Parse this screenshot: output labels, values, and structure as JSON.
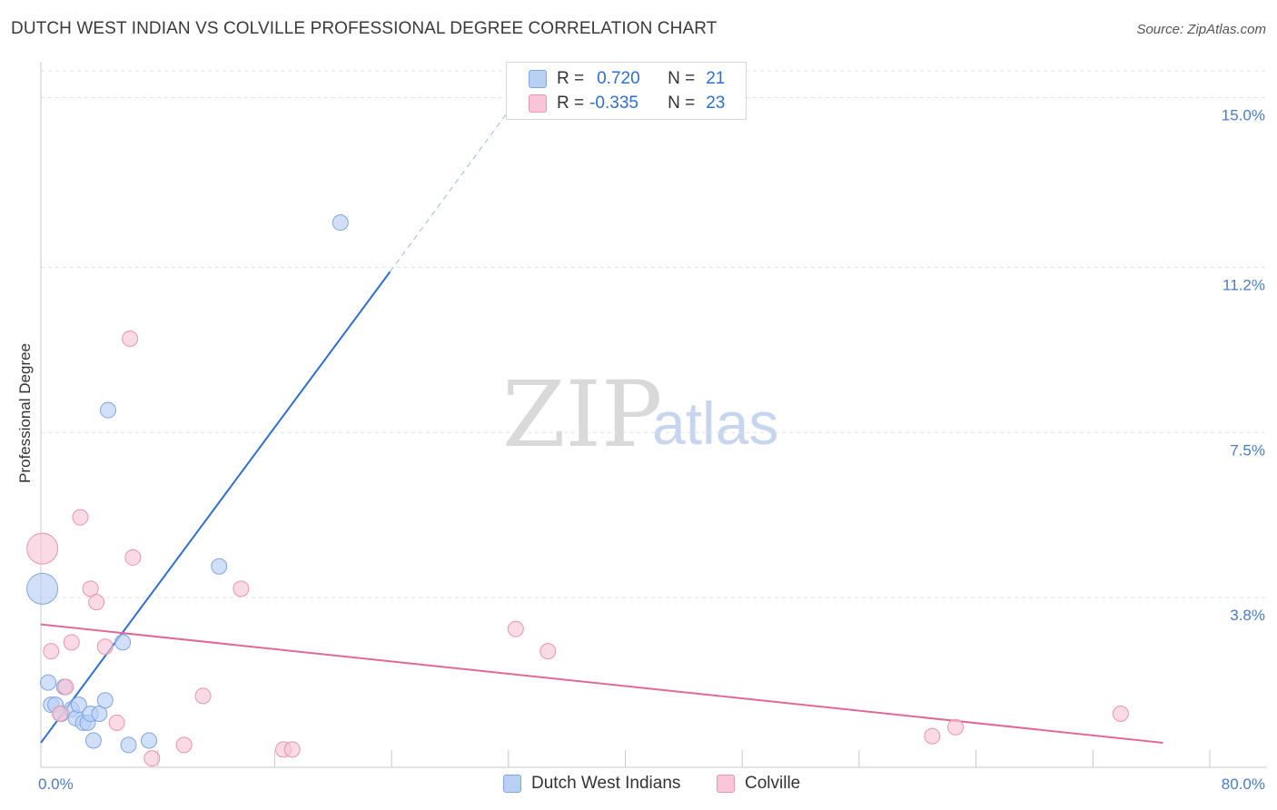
{
  "title": "DUTCH WEST INDIAN VS COLVILLE PROFESSIONAL DEGREE CORRELATION CHART",
  "source": "Source: ZipAtlas.com",
  "watermark": {
    "zip": "ZIP",
    "atlas": "atlas"
  },
  "legend": {
    "rows": [
      {
        "r_label": "R =",
        "r_value": "0.720",
        "n_label": "N =",
        "n_value": "21"
      },
      {
        "r_label": "R =",
        "r_value": "-0.335",
        "n_label": "N =",
        "n_value": "23"
      }
    ]
  },
  "bottom_legend": {
    "series1": "Dutch West Indians",
    "series2": "Colville"
  },
  "colors": {
    "blue_fill": "#b8d0f4",
    "blue_stroke": "#7ea6e0",
    "blue_line": "#2f6fd0",
    "pink_fill": "#f8c6d6",
    "pink_stroke": "#eb95b0",
    "pink_line": "#e06a96",
    "tick": "#4a7cc7"
  },
  "chart_data": {
    "type": "scatter",
    "title": "DUTCH WEST INDIAN VS COLVILLE PROFESSIONAL DEGREE CORRELATION CHART",
    "xlabel": "",
    "ylabel": "Professional Degree",
    "xlim": [
      0,
      80
    ],
    "ylim": [
      0,
      15.6
    ],
    "x_tick_labels": [
      "0.0%",
      "80.0%"
    ],
    "y_ticks": [
      3.8,
      7.5,
      11.2,
      15.0
    ],
    "y_tick_labels": [
      "3.8%",
      "7.5%",
      "11.2%",
      "15.0%"
    ],
    "series": [
      {
        "name": "Dutch West Indians",
        "points": [
          {
            "x": 0.1,
            "y": 4.0,
            "big": true
          },
          {
            "x": 0.5,
            "y": 1.9
          },
          {
            "x": 0.7,
            "y": 1.4
          },
          {
            "x": 1.0,
            "y": 1.4
          },
          {
            "x": 1.4,
            "y": 1.2
          },
          {
            "x": 1.6,
            "y": 1.8
          },
          {
            "x": 2.1,
            "y": 1.3
          },
          {
            "x": 2.4,
            "y": 1.1
          },
          {
            "x": 2.6,
            "y": 1.4
          },
          {
            "x": 2.9,
            "y": 1.0
          },
          {
            "x": 3.2,
            "y": 1.0
          },
          {
            "x": 3.4,
            "y": 1.2
          },
          {
            "x": 3.6,
            "y": 0.6
          },
          {
            "x": 4.0,
            "y": 1.2
          },
          {
            "x": 4.4,
            "y": 1.5
          },
          {
            "x": 4.6,
            "y": 8.0
          },
          {
            "x": 5.6,
            "y": 2.8
          },
          {
            "x": 6.0,
            "y": 0.5
          },
          {
            "x": 7.4,
            "y": 0.6
          },
          {
            "x": 12.2,
            "y": 4.5
          },
          {
            "x": 20.5,
            "y": 12.2
          }
        ],
        "trend": {
          "x0": 0,
          "y0": 0.55,
          "x1": 23.9,
          "y1": 11.1,
          "dash_to_x": 32.0,
          "dash_to_y": 14.7
        }
      },
      {
        "name": "Colville",
        "points": [
          {
            "x": 0.1,
            "y": 4.9,
            "big": true
          },
          {
            "x": 0.7,
            "y": 2.6
          },
          {
            "x": 1.3,
            "y": 1.2
          },
          {
            "x": 1.7,
            "y": 1.8
          },
          {
            "x": 2.1,
            "y": 2.8
          },
          {
            "x": 2.7,
            "y": 5.6
          },
          {
            "x": 3.4,
            "y": 4.0
          },
          {
            "x": 3.8,
            "y": 3.7
          },
          {
            "x": 4.4,
            "y": 2.7
          },
          {
            "x": 5.2,
            "y": 1.0
          },
          {
            "x": 6.1,
            "y": 9.6
          },
          {
            "x": 6.3,
            "y": 4.7
          },
          {
            "x": 7.6,
            "y": 0.2
          },
          {
            "x": 9.8,
            "y": 0.5
          },
          {
            "x": 11.1,
            "y": 1.6
          },
          {
            "x": 13.7,
            "y": 4.0
          },
          {
            "x": 16.6,
            "y": 0.4
          },
          {
            "x": 17.2,
            "y": 0.4
          },
          {
            "x": 32.5,
            "y": 3.1
          },
          {
            "x": 34.7,
            "y": 2.6
          },
          {
            "x": 61.0,
            "y": 0.7
          },
          {
            "x": 62.6,
            "y": 0.9
          },
          {
            "x": 73.9,
            "y": 1.2
          }
        ],
        "trend": {
          "x0": 0,
          "y0": 3.2,
          "x1": 76.8,
          "y1": 0.55
        }
      }
    ]
  }
}
